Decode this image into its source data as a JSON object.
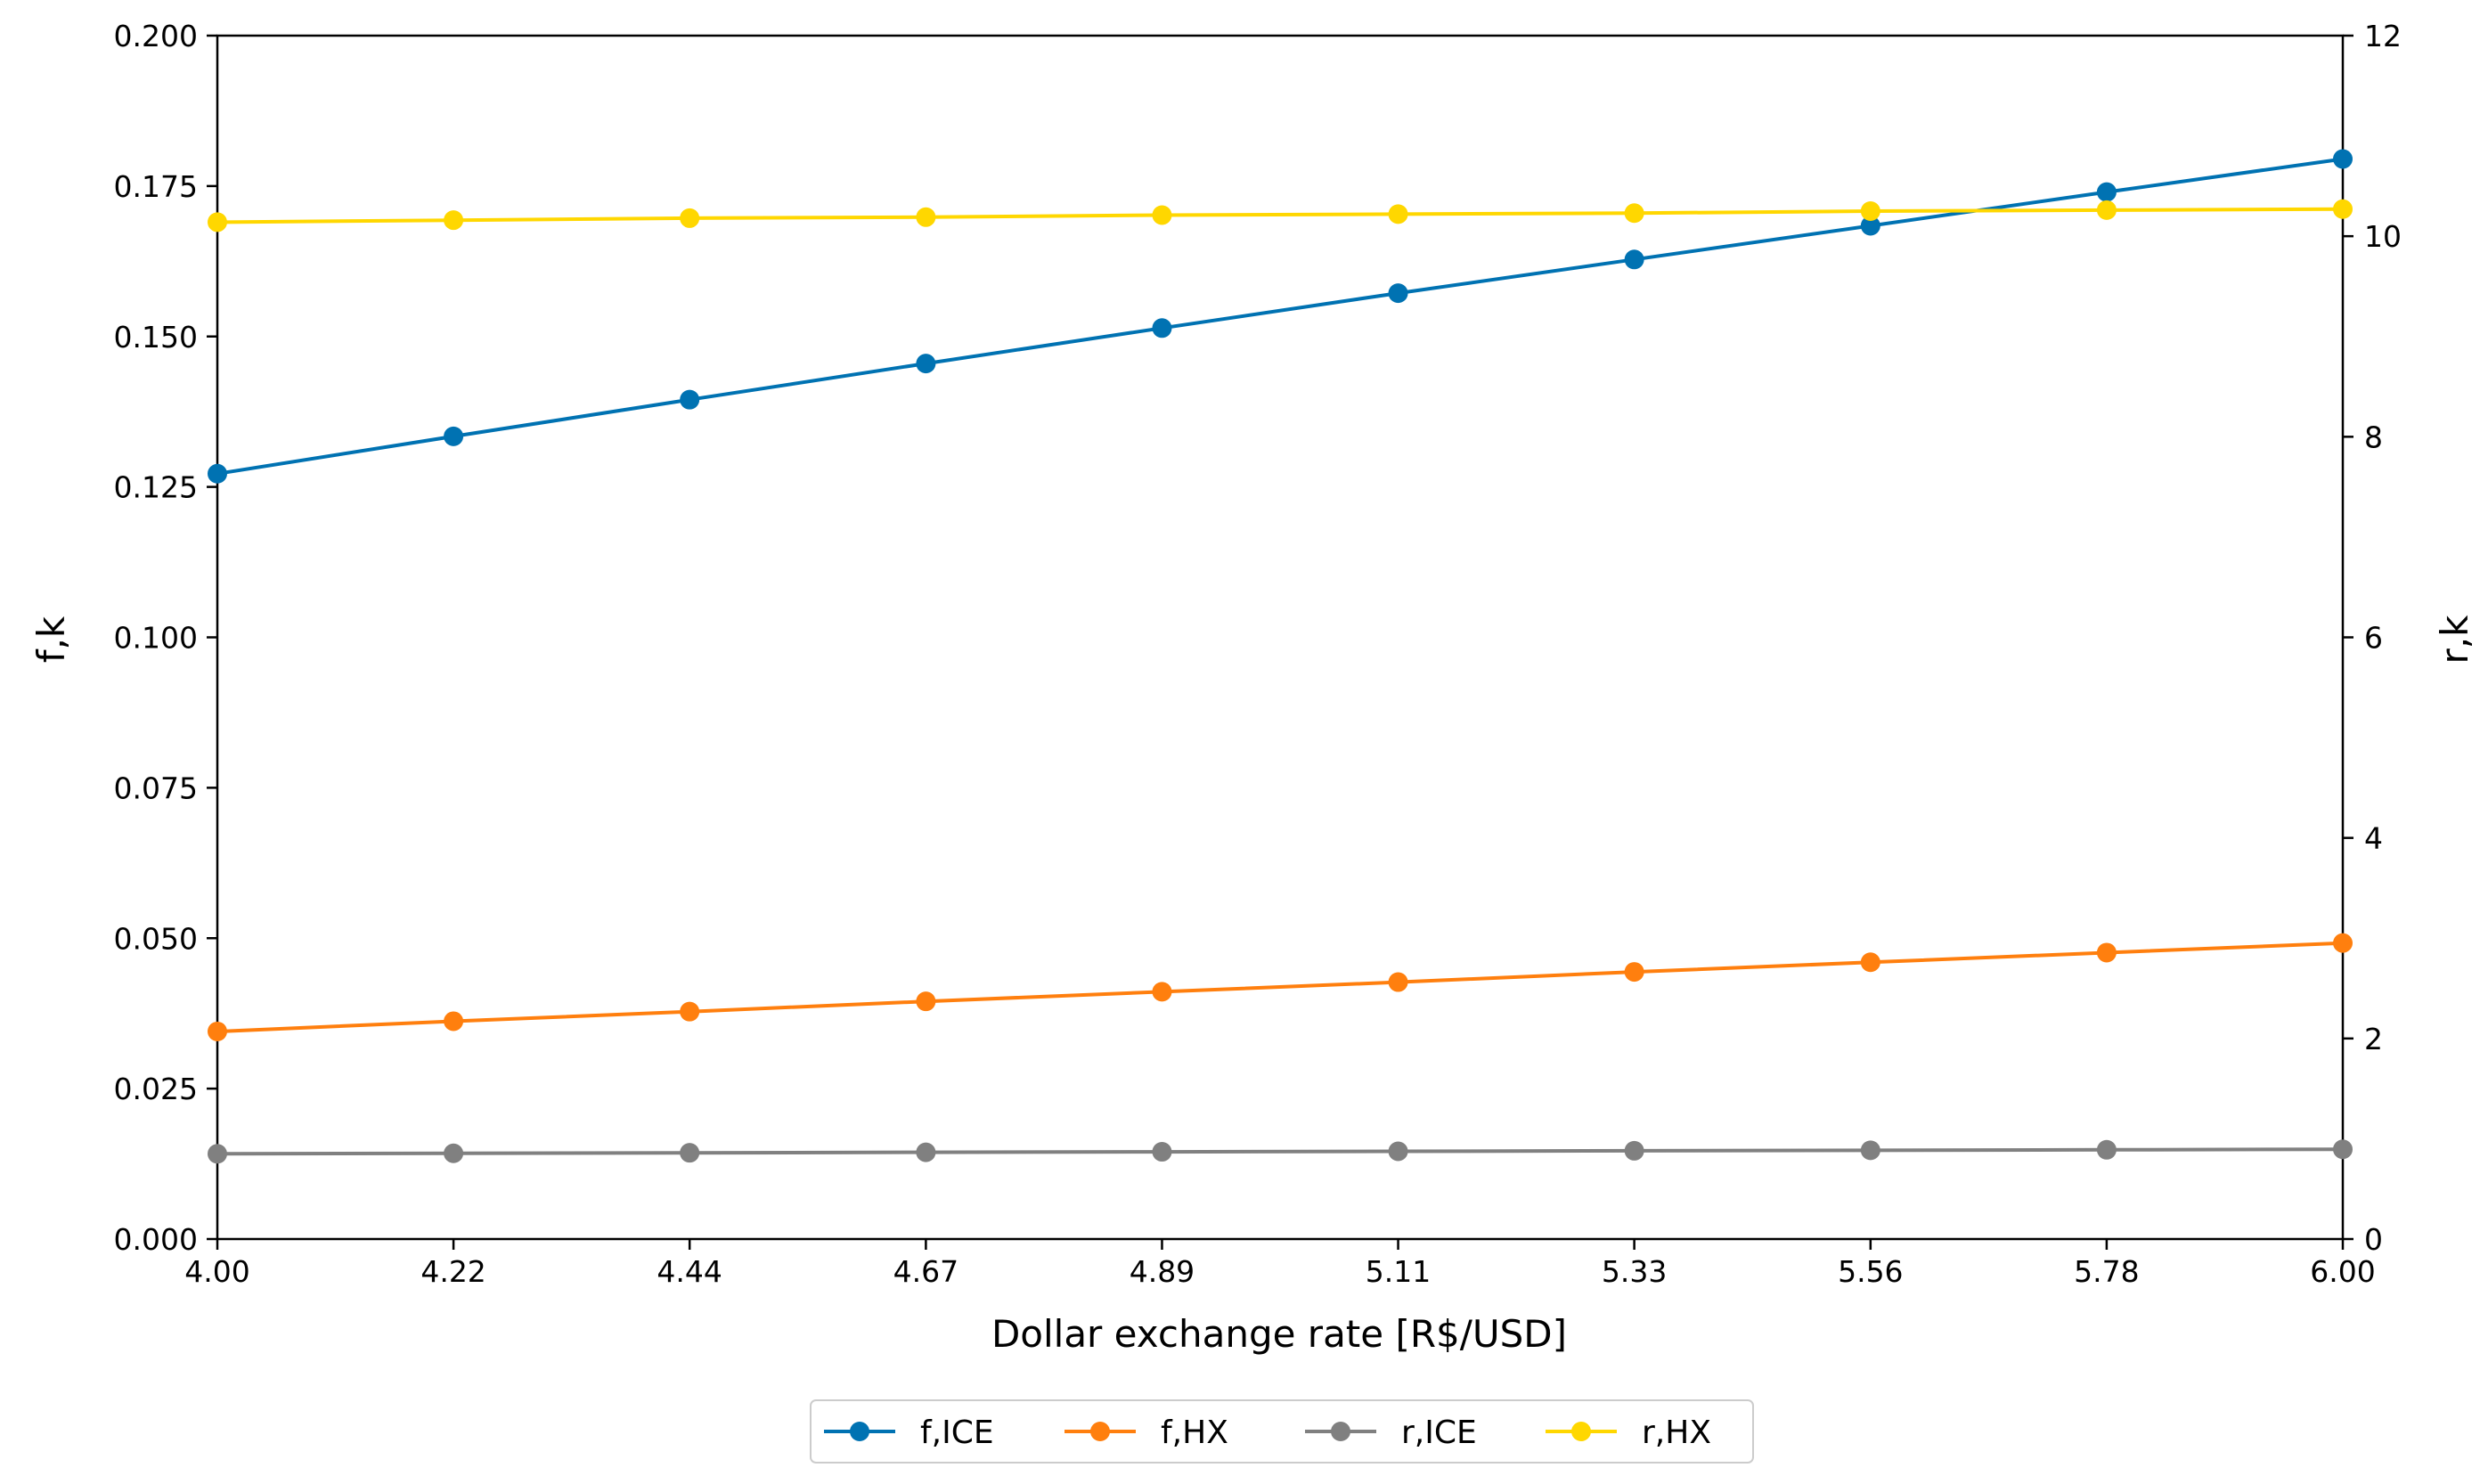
{
  "chart_data": {
    "type": "line",
    "xlabel": "Dollar exchange rate [R$/USD]",
    "ylabel_left": "f,k",
    "ylabel_right": "r,k",
    "xlim": [
      4.0,
      6.0
    ],
    "ylim_left": [
      0.0,
      0.2
    ],
    "ylim_right": [
      0,
      12
    ],
    "x": [
      4.0,
      4.2222,
      4.4444,
      4.6667,
      4.8889,
      5.1111,
      5.3333,
      5.5556,
      5.7778,
      6.0
    ],
    "x_tick_labels": [
      "4.00",
      "4.22",
      "4.44",
      "4.67",
      "4.89",
      "5.11",
      "5.33",
      "5.56",
      "5.78",
      "6.00"
    ],
    "y_left_tick_values": [
      0.0,
      0.025,
      0.05,
      0.075,
      0.1,
      0.125,
      0.15,
      0.175,
      0.2
    ],
    "y_left_tick_labels": [
      "0.000",
      "0.025",
      "0.050",
      "0.075",
      "0.100",
      "0.125",
      "0.150",
      "0.175",
      "0.200"
    ],
    "y_right_tick_values": [
      0,
      2,
      4,
      6,
      8,
      10,
      12
    ],
    "y_right_tick_labels": [
      "0",
      "2",
      "4",
      "6",
      "8",
      "10",
      "12"
    ],
    "grid": false,
    "legend_position": "bottom-center",
    "series": [
      {
        "name": "f,ICE",
        "axis": "left",
        "color": "#0072B2",
        "values": [
          0.1272,
          0.1334,
          0.1395,
          0.1455,
          0.1514,
          0.1572,
          0.1628,
          0.1684,
          0.174,
          0.1795
        ]
      },
      {
        "name": "f,HX",
        "axis": "left",
        "color": "#FF7F0E",
        "values": [
          0.0345,
          0.0362,
          0.0378,
          0.0395,
          0.0411,
          0.0427,
          0.0444,
          0.046,
          0.0476,
          0.0492
        ]
      },
      {
        "name": "r,ICE",
        "axis": "right",
        "color": "#808080",
        "values": [
          0.85,
          0.855,
          0.86,
          0.865,
          0.87,
          0.875,
          0.88,
          0.885,
          0.89,
          0.895
        ]
      },
      {
        "name": "r,HX",
        "axis": "right",
        "color": "#FFD700",
        "values": [
          10.14,
          10.16,
          10.18,
          10.19,
          10.21,
          10.22,
          10.23,
          10.25,
          10.26,
          10.27
        ]
      }
    ]
  }
}
